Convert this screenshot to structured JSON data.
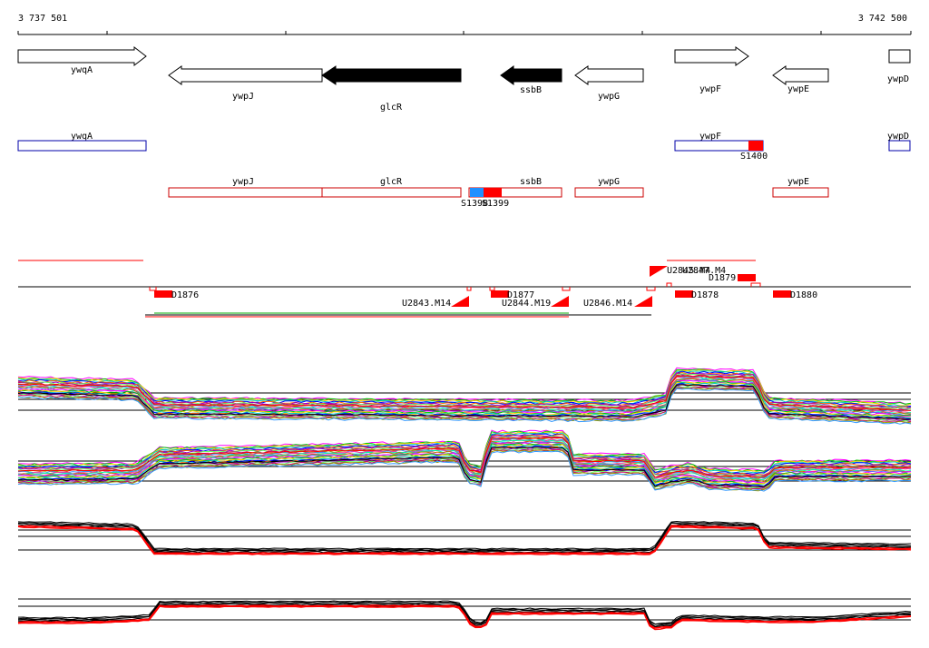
{
  "ruler": {
    "start_label": "3 737 501",
    "end_label": "3 742 500"
  },
  "genes_top": [
    {
      "name": "ywqA",
      "strand": "+",
      "fill": "#ffffff"
    },
    {
      "name": "ywpJ",
      "strand": "-",
      "fill": "#ffffff"
    },
    {
      "name": "glcR",
      "strand": "-",
      "fill": "#000000"
    },
    {
      "name": "ssbB",
      "strand": "-",
      "fill": "#000000"
    },
    {
      "name": "ywpG",
      "strand": "-",
      "fill": "#ffffff"
    },
    {
      "name": "ywpF",
      "strand": "+",
      "fill": "#ffffff"
    },
    {
      "name": "ywpE",
      "strand": "-",
      "fill": "#ffffff"
    },
    {
      "name": "ywpD",
      "strand": "+",
      "fill": "#ffffff"
    }
  ],
  "plus_boxes": [
    {
      "name": "ywqA",
      "color": "#0000aa"
    },
    {
      "name": "ywpF",
      "color": "#0000aa"
    },
    {
      "name": "ywpD",
      "color": "#0000aa"
    }
  ],
  "plus_features": [
    {
      "label": "S1400",
      "color": "#ff0000"
    }
  ],
  "minus_boxes": [
    {
      "name": "ywpJ",
      "color": "#cc0000"
    },
    {
      "name": "glcR",
      "color": "#cc0000"
    },
    {
      "name": "ssbB",
      "color": "#cc0000"
    },
    {
      "name": "ywpG",
      "color": "#cc0000"
    },
    {
      "name": "ywpE",
      "color": "#cc0000"
    }
  ],
  "minus_features": [
    {
      "label": "S1398",
      "color": "#1e90ff"
    },
    {
      "label": "S1399",
      "color": "#ff0000"
    }
  ],
  "segments_down": [
    {
      "label": "D1876"
    },
    {
      "label": "D1877"
    },
    {
      "label": "D1878"
    },
    {
      "label": "D1880"
    }
  ],
  "segments_up": [
    {
      "label": "D1879"
    }
  ],
  "upshifts": [
    {
      "label": "U2843.M14"
    },
    {
      "label": "U2844.M19"
    },
    {
      "label": "U2846.M14"
    },
    {
      "label": "U2845.M4"
    },
    {
      "label": "U2847.M4"
    }
  ],
  "colors": {
    "red": "#ff0000",
    "black": "#000000",
    "blue": "#1e90ff",
    "green": "#00aa00"
  }
}
